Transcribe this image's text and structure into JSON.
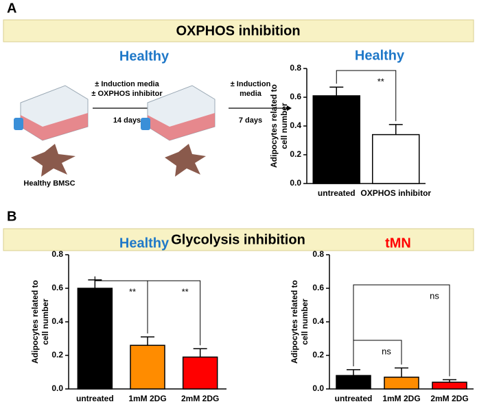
{
  "panels": [
    {
      "label": "A",
      "banner": "OXPHOS inhibition"
    },
    {
      "label": "B",
      "banner": "Glycolysis inhibition"
    }
  ],
  "diagram": {
    "title": "Healthy",
    "step1_lines": [
      "± Induction media",
      "± OXPHOS inhibitor"
    ],
    "step1_duration": "14 days",
    "step2_lines": [
      "± Induction",
      "media"
    ],
    "step2_duration": "7 days",
    "caption": "Healthy BMSC"
  },
  "chart_data": [
    {
      "type": "bar",
      "title": "Healthy",
      "title_color": "#1f78c8",
      "ylabel": [
        "Adipocytes related to",
        "cell number"
      ],
      "categories": [
        "untreated",
        "OXPHOS inhibitor"
      ],
      "values": [
        0.61,
        0.34
      ],
      "errors": [
        0.06,
        0.07
      ],
      "colors": [
        "#000000",
        "#ffffff"
      ],
      "ylim": [
        0,
        0.8
      ],
      "yticks": [
        {
          "value": 0,
          "label": "0.0"
        },
        0.2,
        0.4,
        0.6,
        0.8
      ],
      "annotations": [
        {
          "from": 0,
          "to": 1,
          "label": "**"
        }
      ]
    },
    {
      "type": "bar",
      "title": "Healthy",
      "title_color": "#1f78c8",
      "ylabel": [
        "Adipocytes related to",
        "cell number"
      ],
      "categories": [
        "untreated",
        "1mM 2DG",
        "2mM 2DG"
      ],
      "values": [
        0.6,
        0.26,
        0.19
      ],
      "errors": [
        0.05,
        0.05,
        0.05
      ],
      "colors": [
        "#000000",
        "#ff8c00",
        "#ff0000"
      ],
      "ylim": [
        0,
        0.8
      ],
      "yticks": [
        {
          "value": 0,
          "label": "0.0"
        },
        0.2,
        0.4,
        0.6,
        0.8
      ],
      "annotations": [
        {
          "from": 0,
          "to": 1,
          "label": "**"
        },
        {
          "from": 0,
          "to": 2,
          "label": "**"
        }
      ]
    },
    {
      "type": "bar",
      "title": "tMN",
      "title_color": "#ff0000",
      "ylabel": [
        "Adipocytes related to",
        "cell number"
      ],
      "categories": [
        "untreated",
        "1mM 2DG",
        "2mM 2DG"
      ],
      "values": [
        0.08,
        0.07,
        0.04
      ],
      "errors": [
        0.035,
        0.055,
        0.015
      ],
      "colors": [
        "#000000",
        "#ff8c00",
        "#ff0000"
      ],
      "ylim": [
        0,
        0.8
      ],
      "yticks": [
        {
          "value": 0,
          "label": "0.0"
        },
        0.2,
        0.4,
        0.6,
        0.8
      ],
      "annotations": [
        {
          "from": 0,
          "to": 1,
          "label": "ns"
        },
        {
          "from": 0,
          "to": 2,
          "label": "ns"
        }
      ]
    }
  ]
}
